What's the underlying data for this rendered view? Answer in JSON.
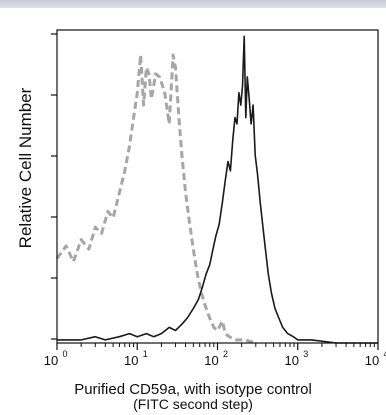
{
  "chart_data": {
    "type": "histogram",
    "title": "",
    "xlabel": "Purified CD59a, with isotype control",
    "xlabel_line2": "(FITC second step)",
    "ylabel": "Relative Cell Number",
    "xscale": "log",
    "xlim": [
      1,
      10000
    ],
    "ylim": [
      0,
      100
    ],
    "x_tick_labels": [
      "10",
      "10",
      "10",
      "10",
      "10"
    ],
    "x_tick_exponents": [
      "0",
      "1",
      "2",
      "3",
      "4"
    ],
    "grid": false,
    "legend": "none",
    "series": [
      {
        "style": "dashed",
        "color": "#a6a6a6",
        "points": [
          [
            1.0,
            27
          ],
          [
            1.3,
            31
          ],
          [
            1.6,
            26
          ],
          [
            2.0,
            33
          ],
          [
            2.5,
            30
          ],
          [
            3.0,
            37
          ],
          [
            3.6,
            35
          ],
          [
            4.3,
            42
          ],
          [
            5.0,
            40
          ],
          [
            6.0,
            48
          ],
          [
            7.0,
            55
          ],
          [
            8.0,
            63
          ],
          [
            9.0,
            72
          ],
          [
            10.0,
            80
          ],
          [
            11.0,
            92
          ],
          [
            12.0,
            76
          ],
          [
            13.0,
            88
          ],
          [
            14.0,
            86
          ],
          [
            15.0,
            78
          ],
          [
            17.0,
            86
          ],
          [
            19.0,
            85
          ],
          [
            22.0,
            80
          ],
          [
            25.0,
            70
          ],
          [
            28.0,
            92
          ],
          [
            30.0,
            88
          ],
          [
            33.0,
            72
          ],
          [
            36.0,
            60
          ],
          [
            40.0,
            48
          ],
          [
            45.0,
            38
          ],
          [
            50.0,
            30
          ],
          [
            56.0,
            22
          ],
          [
            63.0,
            16
          ],
          [
            70.0,
            12
          ],
          [
            80.0,
            8
          ],
          [
            90.0,
            5
          ],
          [
            100.0,
            4
          ],
          [
            115.0,
            7
          ],
          [
            125.0,
            3
          ],
          [
            140.0,
            2
          ],
          [
            170.0,
            1
          ],
          [
            220.0,
            1
          ],
          [
            300.0,
            0
          ]
        ]
      },
      {
        "style": "solid",
        "color": "#1a1a1a",
        "points": [
          [
            1.0,
            1
          ],
          [
            2.0,
            1
          ],
          [
            3.0,
            2
          ],
          [
            4.0,
            1
          ],
          [
            6.0,
            2
          ],
          [
            8.0,
            3
          ],
          [
            10.0,
            2
          ],
          [
            13.0,
            3
          ],
          [
            16.0,
            2
          ],
          [
            20.0,
            3
          ],
          [
            25.0,
            5
          ],
          [
            30.0,
            4
          ],
          [
            36.0,
            6
          ],
          [
            42.0,
            8
          ],
          [
            50.0,
            11
          ],
          [
            58.0,
            14
          ],
          [
            65.0,
            18
          ],
          [
            72.0,
            22
          ],
          [
            80.0,
            25
          ],
          [
            88.0,
            30
          ],
          [
            95.0,
            34
          ],
          [
            105.0,
            38
          ],
          [
            115.0,
            45
          ],
          [
            125.0,
            52
          ],
          [
            135.0,
            58
          ],
          [
            145.0,
            55
          ],
          [
            155.0,
            65
          ],
          [
            165.0,
            72
          ],
          [
            175.0,
            70
          ],
          [
            185.0,
            80
          ],
          [
            195.0,
            76
          ],
          [
            205.0,
            82
          ],
          [
            215.0,
            98
          ],
          [
            225.0,
            72
          ],
          [
            235.0,
            85
          ],
          [
            248.0,
            78
          ],
          [
            262.0,
            70
          ],
          [
            278.0,
            76
          ],
          [
            295.0,
            60
          ],
          [
            315.0,
            54
          ],
          [
            340.0,
            45
          ],
          [
            365.0,
            38
          ],
          [
            395.0,
            30
          ],
          [
            430.0,
            22
          ],
          [
            470.0,
            16
          ],
          [
            520.0,
            11
          ],
          [
            580.0,
            8
          ],
          [
            650.0,
            5
          ],
          [
            750.0,
            3
          ],
          [
            880.0,
            2
          ],
          [
            1000.0,
            1
          ],
          [
            1500.0,
            1
          ],
          [
            3000.0,
            0
          ],
          [
            10000.0,
            0
          ]
        ]
      }
    ]
  }
}
